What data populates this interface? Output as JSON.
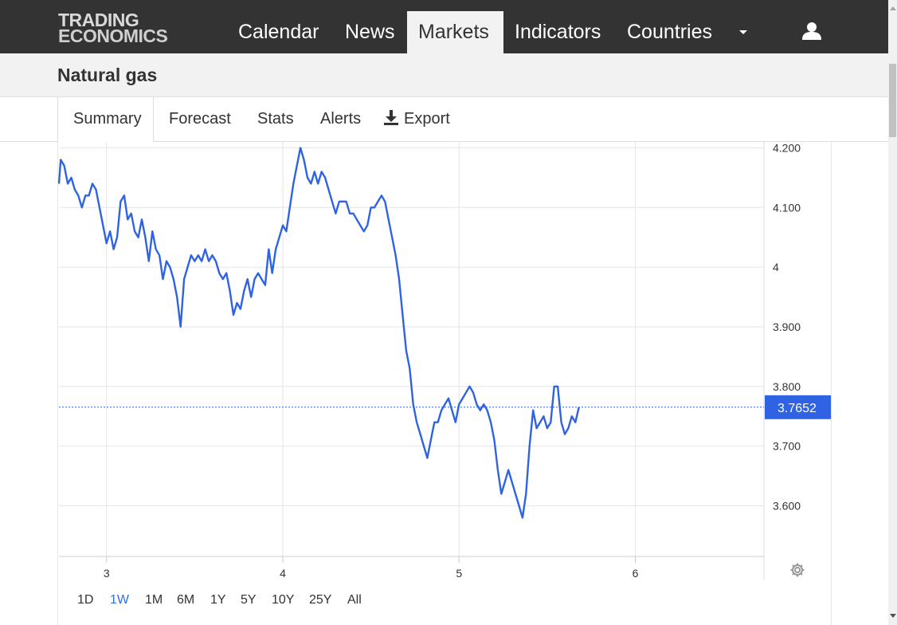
{
  "brand": {
    "line1": "TRADING",
    "line2": "ECONOMICS"
  },
  "nav": {
    "items": [
      {
        "label": "Calendar",
        "active": false
      },
      {
        "label": "News",
        "active": false
      },
      {
        "label": "Markets",
        "active": true
      },
      {
        "label": "Indicators",
        "active": false
      },
      {
        "label": "Countries",
        "active": false
      }
    ],
    "more_icon": "caret-down-icon",
    "user_icon": "user-icon"
  },
  "page": {
    "title": "Natural gas"
  },
  "tabs": {
    "items": [
      "Summary",
      "Forecast",
      "Stats",
      "Alerts"
    ],
    "export_label": "Export",
    "active": "Summary"
  },
  "colors": {
    "line": "#2f63e3",
    "accent": "#2f6fe0",
    "topbar": "#333333",
    "grid": "#e6e6e6"
  },
  "chart_data": {
    "type": "line",
    "title": "",
    "xlabel": "",
    "ylabel": "",
    "x_ticks": [
      "3",
      "4",
      "5",
      "6"
    ],
    "y_ticks": [
      "4.200",
      "4.100",
      "4",
      "3.900",
      "3.800",
      "3.700",
      "3.600"
    ],
    "y_tick_values": [
      4.2,
      4.1,
      4.0,
      3.9,
      3.8,
      3.7,
      3.6
    ],
    "ylim": [
      3.515,
      4.21
    ],
    "xlim": [
      2.73,
      6.73
    ],
    "current_value": 3.7652,
    "current_label": "3.7652",
    "grid": true,
    "series": [
      {
        "name": "",
        "points": [
          [
            2.73,
            4.14
          ],
          [
            2.74,
            4.18
          ],
          [
            2.76,
            4.17
          ],
          [
            2.78,
            4.14
          ],
          [
            2.8,
            4.15
          ],
          [
            2.82,
            4.13
          ],
          [
            2.84,
            4.12
          ],
          [
            2.86,
            4.1
          ],
          [
            2.88,
            4.12
          ],
          [
            2.9,
            4.12
          ],
          [
            2.92,
            4.14
          ],
          [
            2.94,
            4.13
          ],
          [
            2.96,
            4.1
          ],
          [
            2.98,
            4.07
          ],
          [
            3.0,
            4.04
          ],
          [
            3.02,
            4.06
          ],
          [
            3.04,
            4.03
          ],
          [
            3.06,
            4.05
          ],
          [
            3.08,
            4.11
          ],
          [
            3.1,
            4.12
          ],
          [
            3.12,
            4.08
          ],
          [
            3.14,
            4.09
          ],
          [
            3.16,
            4.06
          ],
          [
            3.18,
            4.05
          ],
          [
            3.2,
            4.08
          ],
          [
            3.22,
            4.05
          ],
          [
            3.24,
            4.01
          ],
          [
            3.26,
            4.06
          ],
          [
            3.28,
            4.03
          ],
          [
            3.3,
            4.02
          ],
          [
            3.32,
            3.98
          ],
          [
            3.34,
            4.01
          ],
          [
            3.36,
            4.0
          ],
          [
            3.38,
            3.98
          ],
          [
            3.4,
            3.95
          ],
          [
            3.42,
            3.9
          ],
          [
            3.44,
            3.98
          ],
          [
            3.46,
            4.0
          ],
          [
            3.48,
            4.02
          ],
          [
            3.5,
            4.01
          ],
          [
            3.52,
            4.02
          ],
          [
            3.54,
            4.01
          ],
          [
            3.56,
            4.03
          ],
          [
            3.58,
            4.01
          ],
          [
            3.6,
            4.02
          ],
          [
            3.62,
            4.01
          ],
          [
            3.64,
            3.99
          ],
          [
            3.66,
            3.98
          ],
          [
            3.68,
            3.99
          ],
          [
            3.7,
            3.96
          ],
          [
            3.72,
            3.92
          ],
          [
            3.74,
            3.94
          ],
          [
            3.76,
            3.93
          ],
          [
            3.78,
            3.96
          ],
          [
            3.8,
            3.98
          ],
          [
            3.82,
            3.95
          ],
          [
            3.84,
            3.98
          ],
          [
            3.86,
            3.99
          ],
          [
            3.88,
            3.98
          ],
          [
            3.9,
            3.97
          ],
          [
            3.92,
            4.03
          ],
          [
            3.94,
            3.99
          ],
          [
            3.96,
            4.03
          ],
          [
            3.98,
            4.05
          ],
          [
            4.0,
            4.07
          ],
          [
            4.02,
            4.06
          ],
          [
            4.04,
            4.1
          ],
          [
            4.06,
            4.14
          ],
          [
            4.08,
            4.17
          ],
          [
            4.1,
            4.2
          ],
          [
            4.12,
            4.18
          ],
          [
            4.14,
            4.15
          ],
          [
            4.16,
            4.14
          ],
          [
            4.18,
            4.16
          ],
          [
            4.2,
            4.14
          ],
          [
            4.22,
            4.16
          ],
          [
            4.24,
            4.15
          ],
          [
            4.26,
            4.13
          ],
          [
            4.28,
            4.11
          ],
          [
            4.3,
            4.09
          ],
          [
            4.32,
            4.11
          ],
          [
            4.34,
            4.11
          ],
          [
            4.36,
            4.11
          ],
          [
            4.38,
            4.09
          ],
          [
            4.4,
            4.09
          ],
          [
            4.42,
            4.08
          ],
          [
            4.44,
            4.07
          ],
          [
            4.46,
            4.06
          ],
          [
            4.48,
            4.07
          ],
          [
            4.5,
            4.1
          ],
          [
            4.52,
            4.1
          ],
          [
            4.54,
            4.11
          ],
          [
            4.56,
            4.12
          ],
          [
            4.58,
            4.11
          ],
          [
            4.6,
            4.08
          ],
          [
            4.62,
            4.05
          ],
          [
            4.64,
            4.02
          ],
          [
            4.66,
            3.98
          ],
          [
            4.68,
            3.92
          ],
          [
            4.7,
            3.86
          ],
          [
            4.72,
            3.83
          ],
          [
            4.74,
            3.77
          ],
          [
            4.76,
            3.74
          ],
          [
            4.78,
            3.72
          ],
          [
            4.8,
            3.7
          ],
          [
            4.82,
            3.68
          ],
          [
            4.84,
            3.71
          ],
          [
            4.86,
            3.74
          ],
          [
            4.88,
            3.74
          ],
          [
            4.9,
            3.76
          ],
          [
            4.92,
            3.77
          ],
          [
            4.94,
            3.78
          ],
          [
            4.96,
            3.76
          ],
          [
            4.98,
            3.74
          ],
          [
            5.0,
            3.77
          ],
          [
            5.02,
            3.78
          ],
          [
            5.04,
            3.79
          ],
          [
            5.06,
            3.8
          ],
          [
            5.08,
            3.79
          ],
          [
            5.1,
            3.77
          ],
          [
            5.12,
            3.76
          ],
          [
            5.14,
            3.77
          ],
          [
            5.16,
            3.76
          ],
          [
            5.18,
            3.74
          ],
          [
            5.2,
            3.71
          ],
          [
            5.22,
            3.66
          ],
          [
            5.24,
            3.62
          ],
          [
            5.26,
            3.64
          ],
          [
            5.28,
            3.66
          ],
          [
            5.3,
            3.64
          ],
          [
            5.32,
            3.62
          ],
          [
            5.34,
            3.6
          ],
          [
            5.36,
            3.58
          ],
          [
            5.38,
            3.62
          ],
          [
            5.4,
            3.7
          ],
          [
            5.42,
            3.76
          ],
          [
            5.44,
            3.73
          ],
          [
            5.46,
            3.74
          ],
          [
            5.48,
            3.75
          ],
          [
            5.5,
            3.73
          ],
          [
            5.52,
            3.74
          ],
          [
            5.54,
            3.8
          ],
          [
            5.56,
            3.8
          ],
          [
            5.58,
            3.74
          ],
          [
            5.6,
            3.72
          ],
          [
            5.62,
            3.73
          ],
          [
            5.64,
            3.75
          ],
          [
            5.66,
            3.74
          ],
          [
            5.68,
            3.7652
          ]
        ]
      }
    ]
  },
  "settings_icon": "gear-icon",
  "ranges": {
    "items": [
      "1D",
      "1W",
      "1M",
      "6M",
      "1Y",
      "5Y",
      "10Y",
      "25Y",
      "All"
    ],
    "active": "1W"
  }
}
